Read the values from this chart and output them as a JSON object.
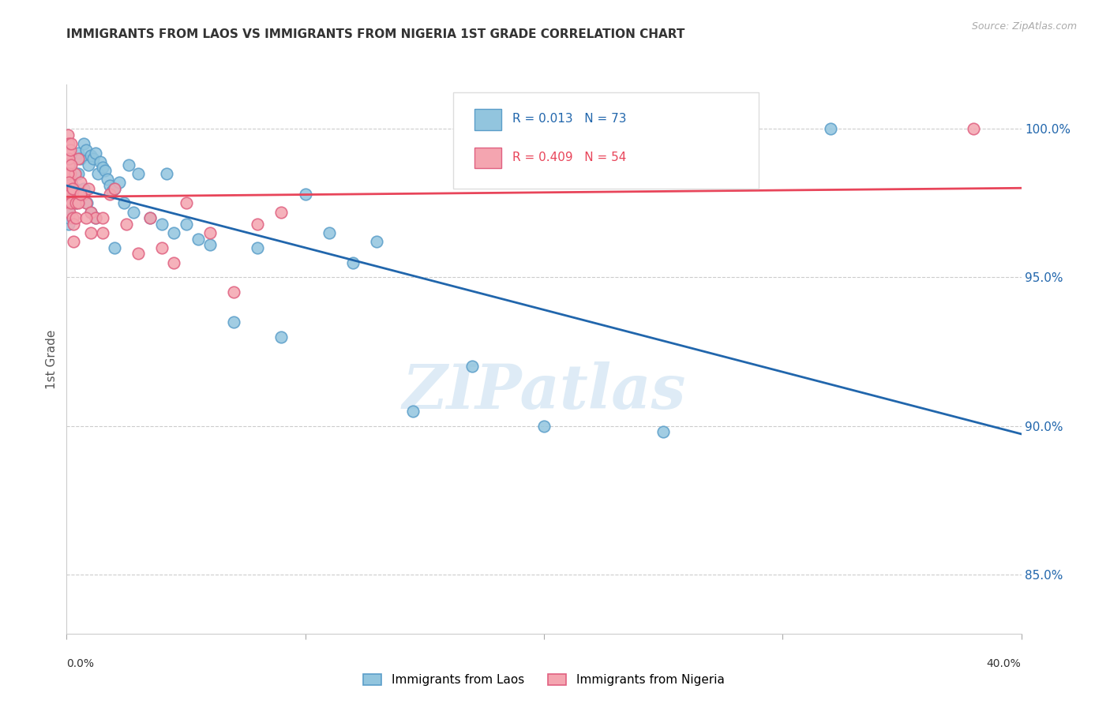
{
  "title": "IMMIGRANTS FROM LAOS VS IMMIGRANTS FROM NIGERIA 1ST GRADE CORRELATION CHART",
  "source": "Source: ZipAtlas.com",
  "ylabel": "1st Grade",
  "xmin": 0.0,
  "xmax": 40.0,
  "ymin": 83.0,
  "ymax": 101.5,
  "yticks": [
    85.0,
    90.0,
    95.0,
    100.0
  ],
  "ytick_labels": [
    "85.0%",
    "90.0%",
    "95.0%",
    "100.0%"
  ],
  "series1_label": "Immigrants from Laos",
  "series2_label": "Immigrants from Nigeria",
  "series1_color": "#92c5de",
  "series2_color": "#f4a5b0",
  "series1_edge": "#5b9ec9",
  "series2_edge": "#e06080",
  "R1": 0.013,
  "N1": 73,
  "R2": 0.409,
  "N2": 54,
  "trend1_color": "#2166ac",
  "trend2_color": "#e8455a",
  "watermark": "ZIPatlas",
  "watermark_color": "#c8dff0",
  "laos_x": [
    0.1,
    0.2,
    0.15,
    0.3,
    0.4,
    0.5,
    0.6,
    0.7,
    0.8,
    0.9,
    1.0,
    1.1,
    1.2,
    1.3,
    1.4,
    1.5,
    1.6,
    1.7,
    1.8,
    1.9,
    2.0,
    2.2,
    2.4,
    2.6,
    2.8,
    3.0,
    3.5,
    4.0,
    4.5,
    5.0,
    5.5,
    6.0,
    7.0,
    8.0,
    9.0,
    10.0,
    11.0,
    12.0,
    13.0,
    14.5,
    17.0,
    20.0,
    25.0,
    32.0,
    0.05,
    0.05,
    0.05,
    0.05,
    0.05,
    0.08,
    0.08,
    0.08,
    0.08,
    0.1,
    0.1,
    0.1,
    0.12,
    0.12,
    0.15,
    0.18,
    0.2,
    0.25,
    0.3,
    0.35,
    0.4,
    0.5,
    0.6,
    0.7,
    0.85,
    1.0,
    1.2,
    2.0,
    4.2
  ],
  "laos_y": [
    97.5,
    98.2,
    98.0,
    97.8,
    98.5,
    99.2,
    99.0,
    99.5,
    99.3,
    98.8,
    99.1,
    99.0,
    99.2,
    98.5,
    98.9,
    98.7,
    98.6,
    98.3,
    98.1,
    97.9,
    98.0,
    98.2,
    97.5,
    98.8,
    97.2,
    98.5,
    97.0,
    96.8,
    96.5,
    96.8,
    96.3,
    96.1,
    93.5,
    96.0,
    93.0,
    97.8,
    96.5,
    95.5,
    96.2,
    90.5,
    92.0,
    90.0,
    89.8,
    100.0,
    98.5,
    98.3,
    98.0,
    97.5,
    97.2,
    96.8,
    98.0,
    97.0,
    97.2,
    99.0,
    98.5,
    98.2,
    98.5,
    97.8,
    98.8,
    97.5,
    98.2,
    98.0,
    97.8,
    98.0,
    97.5,
    98.5,
    97.8,
    98.0,
    97.5,
    97.2,
    97.0,
    96.0,
    98.5
  ],
  "nigeria_x": [
    0.05,
    0.05,
    0.05,
    0.08,
    0.08,
    0.1,
    0.1,
    0.12,
    0.15,
    0.15,
    0.2,
    0.2,
    0.25,
    0.3,
    0.3,
    0.35,
    0.4,
    0.5,
    0.6,
    0.7,
    0.8,
    0.9,
    1.0,
    1.2,
    1.5,
    1.8,
    2.0,
    2.5,
    3.0,
    3.5,
    4.0,
    4.5,
    5.0,
    6.0,
    7.0,
    8.0,
    9.0,
    0.05,
    0.05,
    0.08,
    0.1,
    0.1,
    0.15,
    0.18,
    0.2,
    0.25,
    0.3,
    0.4,
    0.5,
    0.6,
    0.8,
    1.0,
    1.5,
    38.0
  ],
  "nigeria_y": [
    99.5,
    98.8,
    98.5,
    99.2,
    98.0,
    97.5,
    98.8,
    97.2,
    98.5,
    97.8,
    98.2,
    97.5,
    97.0,
    98.0,
    96.8,
    98.5,
    97.5,
    99.0,
    98.2,
    97.8,
    97.5,
    98.0,
    97.2,
    97.0,
    96.5,
    97.8,
    98.0,
    96.8,
    95.8,
    97.0,
    96.0,
    95.5,
    97.5,
    96.5,
    94.5,
    96.8,
    97.2,
    99.8,
    98.5,
    99.5,
    99.0,
    98.2,
    99.3,
    98.8,
    99.5,
    98.0,
    96.2,
    97.0,
    97.5,
    97.8,
    97.0,
    96.5,
    97.0,
    100.0
  ]
}
